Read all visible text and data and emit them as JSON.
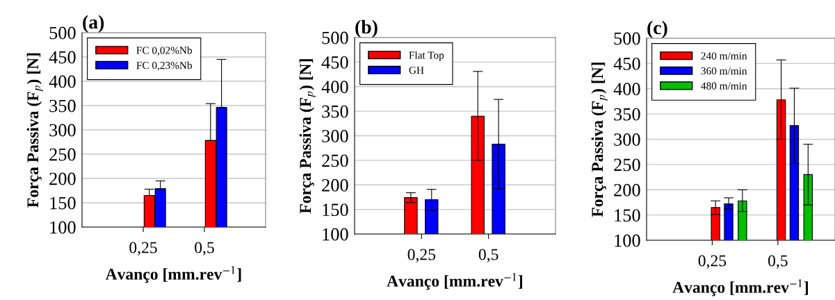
{
  "chart_data": [
    {
      "type": "bar",
      "title": "(a)",
      "xlabel": "Avanço [mm.rev$^{−1}$]",
      "ylabel": "Força Passiva (F$_{p}$) [N]",
      "categories": [
        "0,25",
        "0,5"
      ],
      "ylim": [
        100,
        500
      ],
      "yticks": [
        100,
        150,
        200,
        250,
        300,
        350,
        400,
        450,
        500
      ],
      "grid": "y",
      "legend": "top left",
      "series": [
        {
          "name": "FC 0,02%Nb",
          "color": "#ff0000",
          "values": [
            165,
            278
          ],
          "errors": [
            [
              165,
              178
            ],
            [
              278,
              354
            ]
          ]
        },
        {
          "name": "FC 0,23%Nb",
          "color": "#0000ff",
          "values": [
            179,
            346
          ],
          "errors": [
            [
              179,
              195
            ],
            [
              346,
              445
            ]
          ]
        }
      ]
    },
    {
      "type": "bar",
      "title": "(b)",
      "xlabel": "Avanço [mm.rev$^{−1}$]",
      "ylabel": "Força Passiva (F$_{p}$) [N]",
      "categories": [
        "0,25",
        "0,5"
      ],
      "ylim": [
        100,
        500
      ],
      "yticks": [
        100,
        150,
        200,
        250,
        300,
        350,
        400,
        450,
        500
      ],
      "grid": "y",
      "legend": "top left",
      "series": [
        {
          "name": "Flat Top",
          "color": "#ff0000",
          "values": [
            174,
            340
          ],
          "errors": [
            [
              164,
              184
            ],
            [
              250,
              431
            ]
          ]
        },
        {
          "name": "GH",
          "color": "#0000ff",
          "values": [
            170,
            283
          ],
          "errors": [
            [
              148,
              191
            ],
            [
              192,
              374
            ]
          ]
        }
      ]
    },
    {
      "type": "bar",
      "title": "(c)",
      "xlabel": "Avanço [mm.rev$^{−1}$]",
      "ylabel": "Força Passiva (F$_{p}$) [N]",
      "categories": [
        "0,25",
        "0,5"
      ],
      "ylim": [
        100,
        500
      ],
      "yticks": [
        100,
        150,
        200,
        250,
        300,
        350,
        400,
        450,
        500
      ],
      "grid": "y",
      "legend": "top left",
      "series": [
        {
          "name": "240 m/min",
          "color": "#ff0000",
          "values": [
            165,
            378
          ],
          "errors": [
            [
              151,
              178
            ],
            [
              300,
              457
            ]
          ]
        },
        {
          "name": "360 m/min",
          "color": "#0000ff",
          "values": [
            172,
            327
          ],
          "errors": [
            [
              162,
              184
            ],
            [
              252,
              401
            ]
          ]
        },
        {
          "name": "480 m/min",
          "color": "#00c000",
          "values": [
            178,
            230
          ],
          "errors": [
            [
              157,
              200
            ],
            [
              170,
              290
            ]
          ]
        }
      ]
    }
  ]
}
